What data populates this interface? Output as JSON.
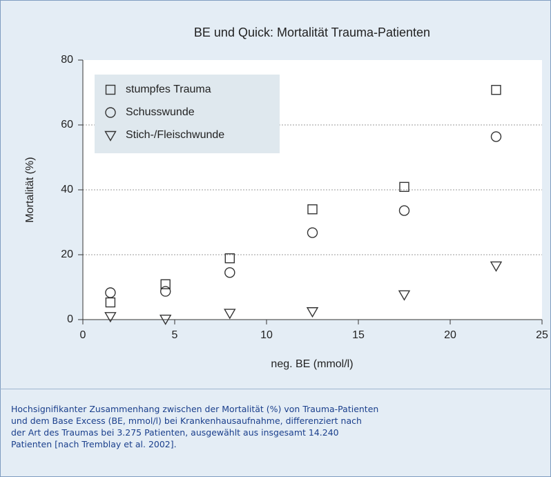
{
  "chart_data": {
    "type": "scatter",
    "title": "BE und Quick: Mortalität Trauma-Patienten",
    "xlabel": "neg. BE (mmol/l)",
    "ylabel": "Mortalität (%)",
    "x": [
      1.5,
      4.5,
      8,
      12.5,
      17.5,
      22.5
    ],
    "series": [
      {
        "name": "stumpfes Trauma",
        "color": "#333333",
        "marker": "square",
        "values": [
          5.3,
          10.9,
          18.9,
          34,
          40.9,
          70.8
        ]
      },
      {
        "name": "Schusswunde",
        "color": "#333333",
        "marker": "circle",
        "values": [
          8.3,
          8.7,
          14.5,
          26.8,
          33.6,
          56.4
        ]
      },
      {
        "name": "Stich-/Fleischwunde",
        "color": "#333333",
        "marker": "triangle-down",
        "values": [
          1,
          0.2,
          2,
          2.5,
          7.7,
          16.6
        ]
      }
    ],
    "xlim": [
      0,
      25
    ],
    "xticks": [
      0,
      5,
      10,
      15,
      20,
      25
    ],
    "ylim": [
      0,
      80
    ],
    "yticks": [
      0,
      20,
      40,
      60,
      80
    ],
    "grid": true,
    "legend": "upper-left"
  },
  "caption": [
    "Hochsignifikanter Zusammenhang zwischen der Mortalität (%) von Trauma-Patienten",
    "und dem Base Excess (BE, mmol/l) bei Krankenhausaufnahme, differenziert nach",
    "der Art des Traumas bei 3.275 Patienten, ausgewählt aus insgesamt 14.240",
    "Patienten [nach Tremblay et al. 2002]."
  ]
}
